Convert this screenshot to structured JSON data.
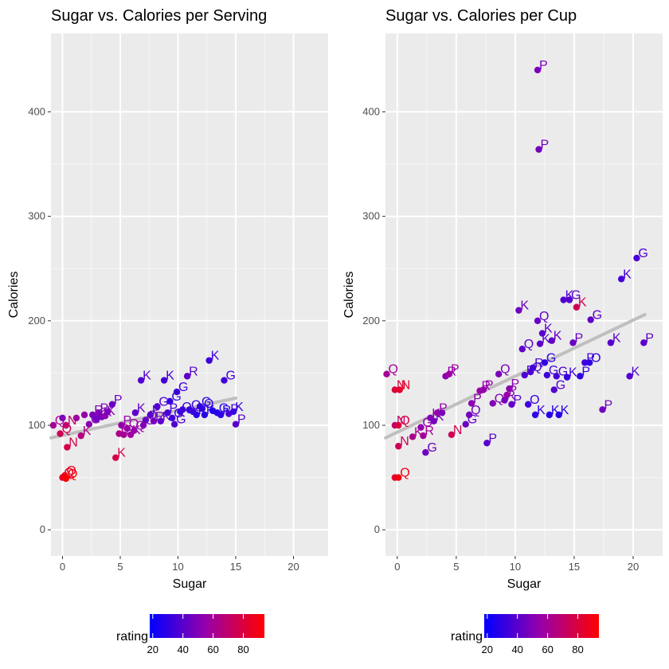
{
  "chart_data": [
    {
      "type": "scatter",
      "title": "Sugar vs. Calories per Serving",
      "xlabel": "Sugar",
      "ylabel": "Calories",
      "xlim": [
        -1,
        23
      ],
      "ylim": [
        -25,
        475
      ],
      "x_ticks": [
        0,
        5,
        10,
        15,
        20
      ],
      "y_ticks": [
        0,
        100,
        200,
        300,
        400
      ],
      "grid": true,
      "color_scale": {
        "name": "rating",
        "low": "#0000ff",
        "high": "#ff0000",
        "min": 18,
        "max": 94,
        "ticks": [
          20,
          40,
          60,
          80
        ]
      },
      "trend_line": {
        "x": [
          -1,
          15
        ],
        "y": [
          88,
          126
        ],
        "color": "#bfbfbf"
      },
      "points": [
        {
          "x": -0.8,
          "y": 100,
          "rating": 60,
          "label": "Q"
        },
        {
          "x": -0.2,
          "y": 92,
          "rating": 75,
          "label": "Q"
        },
        {
          "x": 0.0,
          "y": 107,
          "rating": 50,
          "label": ""
        },
        {
          "x": 0.3,
          "y": 100,
          "rating": 70,
          "label": "N"
        },
        {
          "x": 0.4,
          "y": 79,
          "rating": 78,
          "label": "N"
        },
        {
          "x": 0.0,
          "y": 50,
          "rating": 85,
          "label": "Q"
        },
        {
          "x": 0.2,
          "y": 52,
          "rating": 88,
          "label": "Q"
        },
        {
          "x": 0.3,
          "y": 49,
          "rating": 93,
          "label": "Q"
        },
        {
          "x": 1.2,
          "y": 107,
          "rating": 58,
          "label": ""
        },
        {
          "x": 1.6,
          "y": 90,
          "rating": 65,
          "label": "K"
        },
        {
          "x": 1.9,
          "y": 110,
          "rating": 55,
          "label": ""
        },
        {
          "x": 2.3,
          "y": 101,
          "rating": 52,
          "label": "G"
        },
        {
          "x": 2.6,
          "y": 110,
          "rating": 48,
          "label": "R"
        },
        {
          "x": 2.9,
          "y": 106,
          "rating": 45,
          "label": "K"
        },
        {
          "x": 3.1,
          "y": 112,
          "rating": 50,
          "label": "P"
        },
        {
          "x": 3.4,
          "y": 108,
          "rating": 47,
          "label": "K"
        },
        {
          "x": 3.7,
          "y": 109,
          "rating": 53,
          "label": "K"
        },
        {
          "x": 3.9,
          "y": 113,
          "rating": 49,
          "label": ""
        },
        {
          "x": 4.3,
          "y": 120,
          "rating": 45,
          "label": "P"
        },
        {
          "x": 4.6,
          "y": 69,
          "rating": 78,
          "label": "K"
        },
        {
          "x": 4.9,
          "y": 92,
          "rating": 62,
          "label": "P"
        },
        {
          "x": 5.1,
          "y": 100,
          "rating": 55,
          "label": "P"
        },
        {
          "x": 5.3,
          "y": 91,
          "rating": 60,
          "label": "P"
        },
        {
          "x": 5.6,
          "y": 97,
          "rating": 56,
          "label": "Q"
        },
        {
          "x": 5.9,
          "y": 91,
          "rating": 58,
          "label": "K"
        },
        {
          "x": 6.2,
          "y": 95,
          "rating": 55,
          "label": "Q"
        },
        {
          "x": 6.3,
          "y": 112,
          "rating": 42,
          "label": "K"
        },
        {
          "x": 6.8,
          "y": 143,
          "rating": 38,
          "label": "K"
        },
        {
          "x": 7.0,
          "y": 100,
          "rating": 50,
          "label": "G"
        },
        {
          "x": 7.2,
          "y": 105,
          "rating": 44,
          "label": "Q"
        },
        {
          "x": 7.6,
          "y": 110,
          "rating": 40,
          "label": "P"
        },
        {
          "x": 7.9,
          "y": 104,
          "rating": 47,
          "label": "R"
        },
        {
          "x": 8.2,
          "y": 118,
          "rating": 38,
          "label": "G"
        },
        {
          "x": 8.5,
          "y": 104,
          "rating": 42,
          "label": "K"
        },
        {
          "x": 8.8,
          "y": 143,
          "rating": 35,
          "label": "K"
        },
        {
          "x": 9.1,
          "y": 112,
          "rating": 36,
          "label": "P"
        },
        {
          "x": 9.3,
          "y": 123,
          "rating": 30,
          "label": "G"
        },
        {
          "x": 9.5,
          "y": 107,
          "rating": 34,
          "label": "G"
        },
        {
          "x": 9.7,
          "y": 101,
          "rating": 38,
          "label": "G"
        },
        {
          "x": 9.9,
          "y": 132,
          "rating": 33,
          "label": "G"
        },
        {
          "x": 10.2,
          "y": 113,
          "rating": 32,
          "label": "Q"
        },
        {
          "x": 10.4,
          "y": 115,
          "rating": 34,
          "label": ""
        },
        {
          "x": 10.8,
          "y": 147,
          "rating": 40,
          "label": "R"
        },
        {
          "x": 11.0,
          "y": 115,
          "rating": 31,
          "label": "Q"
        },
        {
          "x": 11.3,
          "y": 113,
          "rating": 33,
          "label": ""
        },
        {
          "x": 11.6,
          "y": 110,
          "rating": 29,
          "label": "K"
        },
        {
          "x": 11.9,
          "y": 118,
          "rating": 30,
          "label": "G"
        },
        {
          "x": 12.1,
          "y": 116,
          "rating": 31,
          "label": "O"
        },
        {
          "x": 12.3,
          "y": 110,
          "rating": 28,
          "label": "K"
        },
        {
          "x": 12.7,
          "y": 162,
          "rating": 33,
          "label": "K"
        },
        {
          "x": 13.0,
          "y": 114,
          "rating": 26,
          "label": ""
        },
        {
          "x": 13.4,
          "y": 112,
          "rating": 27,
          "label": "G"
        },
        {
          "x": 13.7,
          "y": 110,
          "rating": 30,
          "label": "P"
        },
        {
          "x": 14.0,
          "y": 143,
          "rating": 34,
          "label": "G"
        },
        {
          "x": 14.4,
          "y": 111,
          "rating": 36,
          "label": "P"
        },
        {
          "x": 14.8,
          "y": 113,
          "rating": 32,
          "label": "K"
        },
        {
          "x": 15.0,
          "y": 101,
          "rating": 40,
          "label": "P"
        }
      ]
    },
    {
      "type": "scatter",
      "title": "Sugar vs. Calories per Cup",
      "xlabel": "Sugar",
      "ylabel": "Calories",
      "xlim": [
        -1,
        22.5
      ],
      "ylim": [
        -25,
        475
      ],
      "x_ticks": [
        0,
        5,
        10,
        15,
        20
      ],
      "y_ticks": [
        0,
        100,
        200,
        300,
        400
      ],
      "grid": true,
      "color_scale": {
        "name": "rating",
        "low": "#0000ff",
        "high": "#ff0000",
        "min": 18,
        "max": 94,
        "ticks": [
          20,
          40,
          60,
          80
        ]
      },
      "trend_line": {
        "x": [
          -1,
          21
        ],
        "y": [
          88,
          206
        ],
        "color": "#bfbfbf"
      },
      "points": [
        {
          "x": -0.9,
          "y": 149,
          "rating": 60,
          "label": "Q"
        },
        {
          "x": -0.2,
          "y": 134,
          "rating": 80,
          "label": "N"
        },
        {
          "x": 0.2,
          "y": 134,
          "rating": 85,
          "label": "N"
        },
        {
          "x": -0.2,
          "y": 100,
          "rating": 70,
          "label": "N"
        },
        {
          "x": 0.1,
          "y": 100,
          "rating": 80,
          "label": "Q"
        },
        {
          "x": 0.1,
          "y": 80,
          "rating": 75,
          "label": "N"
        },
        {
          "x": -0.2,
          "y": 50,
          "rating": 85,
          "label": ""
        },
        {
          "x": 0.1,
          "y": 50,
          "rating": 90,
          "label": "Q"
        },
        {
          "x": 1.3,
          "y": 89,
          "rating": 62,
          "label": "K"
        },
        {
          "x": 2.0,
          "y": 98,
          "rating": 54,
          "label": "G"
        },
        {
          "x": 2.2,
          "y": 90,
          "rating": 60,
          "label": "R"
        },
        {
          "x": 2.4,
          "y": 74,
          "rating": 45,
          "label": "G"
        },
        {
          "x": 2.8,
          "y": 107,
          "rating": 50,
          "label": "K"
        },
        {
          "x": 3.1,
          "y": 104,
          "rating": 47,
          "label": "K"
        },
        {
          "x": 3.4,
          "y": 112,
          "rating": 55,
          "label": "P"
        },
        {
          "x": 3.8,
          "y": 112,
          "rating": 48,
          "label": ""
        },
        {
          "x": 4.1,
          "y": 147,
          "rating": 52,
          "label": "R"
        },
        {
          "x": 4.4,
          "y": 149,
          "rating": 58,
          "label": "P"
        },
        {
          "x": 4.6,
          "y": 91,
          "rating": 75,
          "label": "N"
        },
        {
          "x": 5.8,
          "y": 101,
          "rating": 44,
          "label": "G"
        },
        {
          "x": 6.1,
          "y": 110,
          "rating": 46,
          "label": "Q"
        },
        {
          "x": 6.3,
          "y": 121,
          "rating": 52,
          "label": "P"
        },
        {
          "x": 7.0,
          "y": 133,
          "rating": 57,
          "label": "R"
        },
        {
          "x": 7.3,
          "y": 134,
          "rating": 54,
          "label": "P"
        },
        {
          "x": 7.6,
          "y": 83,
          "rating": 40,
          "label": "P"
        },
        {
          "x": 8.1,
          "y": 121,
          "rating": 50,
          "label": "Q"
        },
        {
          "x": 8.6,
          "y": 149,
          "rating": 48,
          "label": "Q"
        },
        {
          "x": 9.1,
          "y": 124,
          "rating": 47,
          "label": "R"
        },
        {
          "x": 9.3,
          "y": 129,
          "rating": 55,
          "label": "P"
        },
        {
          "x": 9.5,
          "y": 135,
          "rating": 53,
          "label": "P"
        },
        {
          "x": 9.7,
          "y": 120,
          "rating": 42,
          "label": "P"
        },
        {
          "x": 10.3,
          "y": 210,
          "rating": 45,
          "label": "K"
        },
        {
          "x": 10.6,
          "y": 173,
          "rating": 42,
          "label": "Q"
        },
        {
          "x": 10.8,
          "y": 148,
          "rating": 37,
          "label": "P"
        },
        {
          "x": 11.1,
          "y": 120,
          "rating": 33,
          "label": "O"
        },
        {
          "x": 11.3,
          "y": 151,
          "rating": 38,
          "label": "Q"
        },
        {
          "x": 11.5,
          "y": 155,
          "rating": 35,
          "label": "R"
        },
        {
          "x": 11.7,
          "y": 110,
          "rating": 30,
          "label": "K"
        },
        {
          "x": 11.9,
          "y": 200,
          "rating": 43,
          "label": "Q"
        },
        {
          "x": 11.9,
          "y": 440,
          "rating": 48,
          "label": "P"
        },
        {
          "x": 12.0,
          "y": 364,
          "rating": 46,
          "label": "P"
        },
        {
          "x": 12.1,
          "y": 178,
          "rating": 41,
          "label": "K"
        },
        {
          "x": 12.3,
          "y": 188,
          "rating": 40,
          "label": "K"
        },
        {
          "x": 12.5,
          "y": 160,
          "rating": 30,
          "label": "G"
        },
        {
          "x": 12.7,
          "y": 148,
          "rating": 34,
          "label": "G"
        },
        {
          "x": 12.9,
          "y": 110,
          "rating": 27,
          "label": "K"
        },
        {
          "x": 13.1,
          "y": 181,
          "rating": 42,
          "label": "K"
        },
        {
          "x": 13.3,
          "y": 134,
          "rating": 39,
          "label": "G"
        },
        {
          "x": 13.5,
          "y": 147,
          "rating": 36,
          "label": "G"
        },
        {
          "x": 13.7,
          "y": 110,
          "rating": 28,
          "label": "K"
        },
        {
          "x": 14.1,
          "y": 220,
          "rating": 38,
          "label": "K"
        },
        {
          "x": 14.4,
          "y": 146,
          "rating": 32,
          "label": "K"
        },
        {
          "x": 14.6,
          "y": 220,
          "rating": 40,
          "label": "G"
        },
        {
          "x": 14.9,
          "y": 179,
          "rating": 44,
          "label": "P"
        },
        {
          "x": 15.2,
          "y": 213,
          "rating": 75,
          "label": "K"
        },
        {
          "x": 15.5,
          "y": 147,
          "rating": 30,
          "label": "P"
        },
        {
          "x": 15.9,
          "y": 160,
          "rating": 34,
          "label": "P"
        },
        {
          "x": 16.3,
          "y": 160,
          "rating": 30,
          "label": "O"
        },
        {
          "x": 16.4,
          "y": 201,
          "rating": 42,
          "label": "G"
        },
        {
          "x": 17.4,
          "y": 115,
          "rating": 46,
          "label": "P"
        },
        {
          "x": 18.1,
          "y": 179,
          "rating": 40,
          "label": "K"
        },
        {
          "x": 19.0,
          "y": 240,
          "rating": 35,
          "label": "K"
        },
        {
          "x": 19.7,
          "y": 147,
          "rating": 38,
          "label": "K"
        },
        {
          "x": 20.3,
          "y": 260,
          "rating": 37,
          "label": "G"
        },
        {
          "x": 20.9,
          "y": 179,
          "rating": 41,
          "label": "P"
        }
      ]
    }
  ]
}
